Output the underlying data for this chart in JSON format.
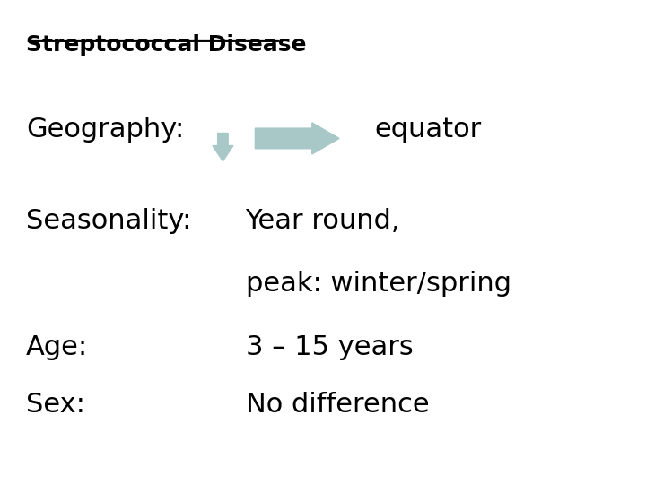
{
  "title": "Streptococcal Disease",
  "background_color": "#ffffff",
  "text_color": "#000000",
  "arrow_color": "#a8c8c8",
  "geography_label": "Geography:",
  "geography_value": "equator",
  "seasonality_label": "Seasonality:",
  "seasonality_value1": "Year round,",
  "seasonality_value2": "peak: winter/spring",
  "age_label": "Age:",
  "age_value": "3 – 15 years",
  "sex_label": "Sex:",
  "sex_value": "No difference",
  "font_size_title": 18,
  "font_size_body": 22
}
